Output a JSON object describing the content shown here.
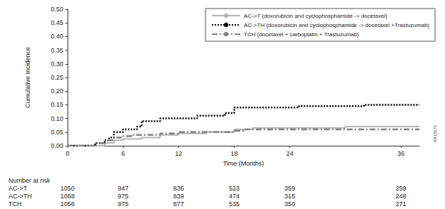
{
  "chart_data": {
    "type": "line",
    "xlabel": "Time (Months)",
    "ylabel": "Cumulative Incidence",
    "xlim": [
      0,
      38
    ],
    "xticks": [
      0,
      6,
      12,
      18,
      24,
      36
    ],
    "ylim": [
      0,
      0.5
    ],
    "yticks": [
      {
        "value": 0,
        "label": "0.00"
      },
      {
        "value": 0.05,
        "label": "0.05"
      },
      {
        "value": 0.1,
        "label": "0.10"
      },
      {
        "value": 0.15,
        "label": "0.15"
      },
      {
        "value": 0.2,
        "label": "0.20"
      },
      {
        "value": 0.25,
        "label": "0.25"
      },
      {
        "value": 0.3,
        "label": "0.30"
      },
      {
        "value": 0.35,
        "label": "0.35"
      },
      {
        "value": 0.4,
        "label": "0.40"
      },
      {
        "value": 0.45,
        "label": "0.45"
      },
      {
        "value": 0.5,
        "label": "0.50"
      }
    ],
    "grid": false,
    "legend": "upper right",
    "series": [
      {
        "name": "AC->T (doxorubicin and cyclophosphamide -> docetaxel)",
        "color": "#b3b3b3",
        "line_style": "solid",
        "x": [
          0,
          3.5,
          4,
          5,
          6,
          8,
          10,
          12,
          15,
          18,
          20,
          24,
          30,
          38
        ],
        "values": [
          0,
          0,
          0.01,
          0.02,
          0.025,
          0.03,
          0.04,
          0.045,
          0.05,
          0.06,
          0.065,
          0.065,
          0.07,
          0.07
        ]
      },
      {
        "name": "AC->TH (doxorubicin and cyclophosphamide -> docetaxel +Trastuzumab)",
        "color": "#000000",
        "line_style": "dotted",
        "x": [
          0,
          2,
          3,
          4,
          4.5,
          5,
          6,
          7.5,
          8,
          10,
          12,
          14,
          17,
          18,
          24,
          25,
          30,
          32,
          38
        ],
        "values": [
          0,
          0,
          0.01,
          0.02,
          0.03,
          0.05,
          0.06,
          0.07,
          0.09,
          0.1,
          0.1,
          0.11,
          0.12,
          0.14,
          0.14,
          0.145,
          0.145,
          0.15,
          0.15
        ]
      },
      {
        "name": "TCH (docetaxel + carboplatin + Trastuzumab)",
        "color": "#808080",
        "line_style": "dashdot",
        "x": [
          0,
          3,
          4,
          5,
          6,
          7,
          10,
          12,
          17,
          18,
          19,
          38
        ],
        "values": [
          0,
          0.01,
          0.02,
          0.03,
          0.035,
          0.04,
          0.045,
          0.05,
          0.05,
          0.055,
          0.06,
          0.06
        ]
      }
    ],
    "at_risk": {
      "title": "Number at risk",
      "times": [
        0,
        6,
        12,
        18,
        24,
        36
      ],
      "rows": [
        {
          "name": "AC->T",
          "values": [
            1050,
            947,
            836,
            523,
            359,
            259
          ]
        },
        {
          "name": "AC->TH",
          "values": [
            1068,
            975,
            839,
            474,
            315,
            248
          ]
        },
        {
          "name": "TCH",
          "values": [
            1056,
            975,
            877,
            535,
            350,
            271
          ]
        }
      ]
    },
    "annotations": [
      {
        "text": "0R18271"
      }
    ]
  }
}
